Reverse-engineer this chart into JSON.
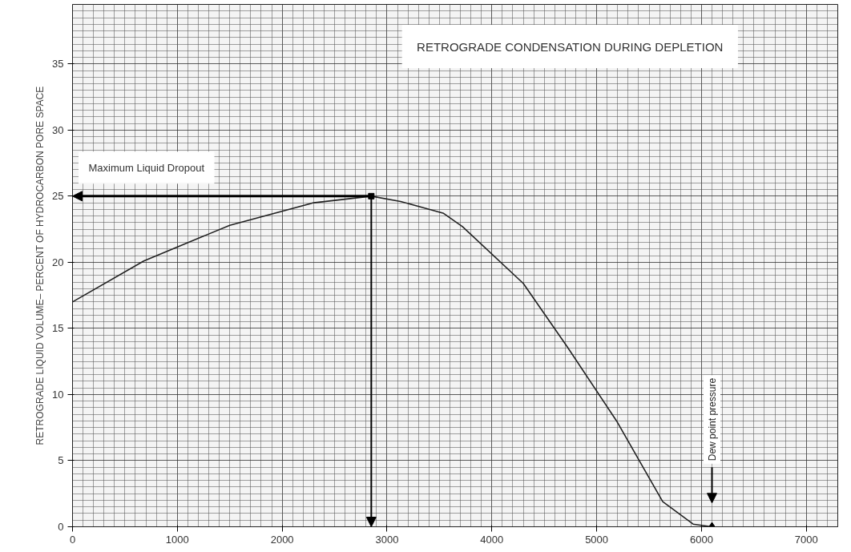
{
  "chart_data": {
    "type": "line",
    "title": "RETROGRADE CONDENSATION DURING DEPLETION",
    "ylabel": "RETROGRADE LIQUID VOLUME– PERCENT OF HYDROCARBON PORE SPACE",
    "x": [
      0,
      680,
      1500,
      2300,
      2850,
      3130,
      3540,
      3720,
      4300,
      4720,
      5190,
      5630,
      5920,
      6100
    ],
    "series": [
      {
        "color": "#222222",
        "values": [
          17,
          20.1,
          22.8,
          24.5,
          25,
          24.6,
          23.7,
          22.7,
          18.4,
          13.6,
          8,
          1.9,
          0.2,
          0
        ]
      }
    ],
    "xlim": [
      0,
      7300
    ],
    "ylim": [
      0,
      39.5
    ],
    "xticks": [
      0,
      1000,
      2000,
      3000,
      4000,
      5000,
      6000,
      7000
    ],
    "yticks": [
      0,
      5,
      10,
      15,
      20,
      25,
      30,
      35
    ],
    "grid": true,
    "marker": "none",
    "line_style": "solid",
    "annotations": [
      "Maximum Liquid Dropout",
      "Dew point pressure"
    ]
  }
}
